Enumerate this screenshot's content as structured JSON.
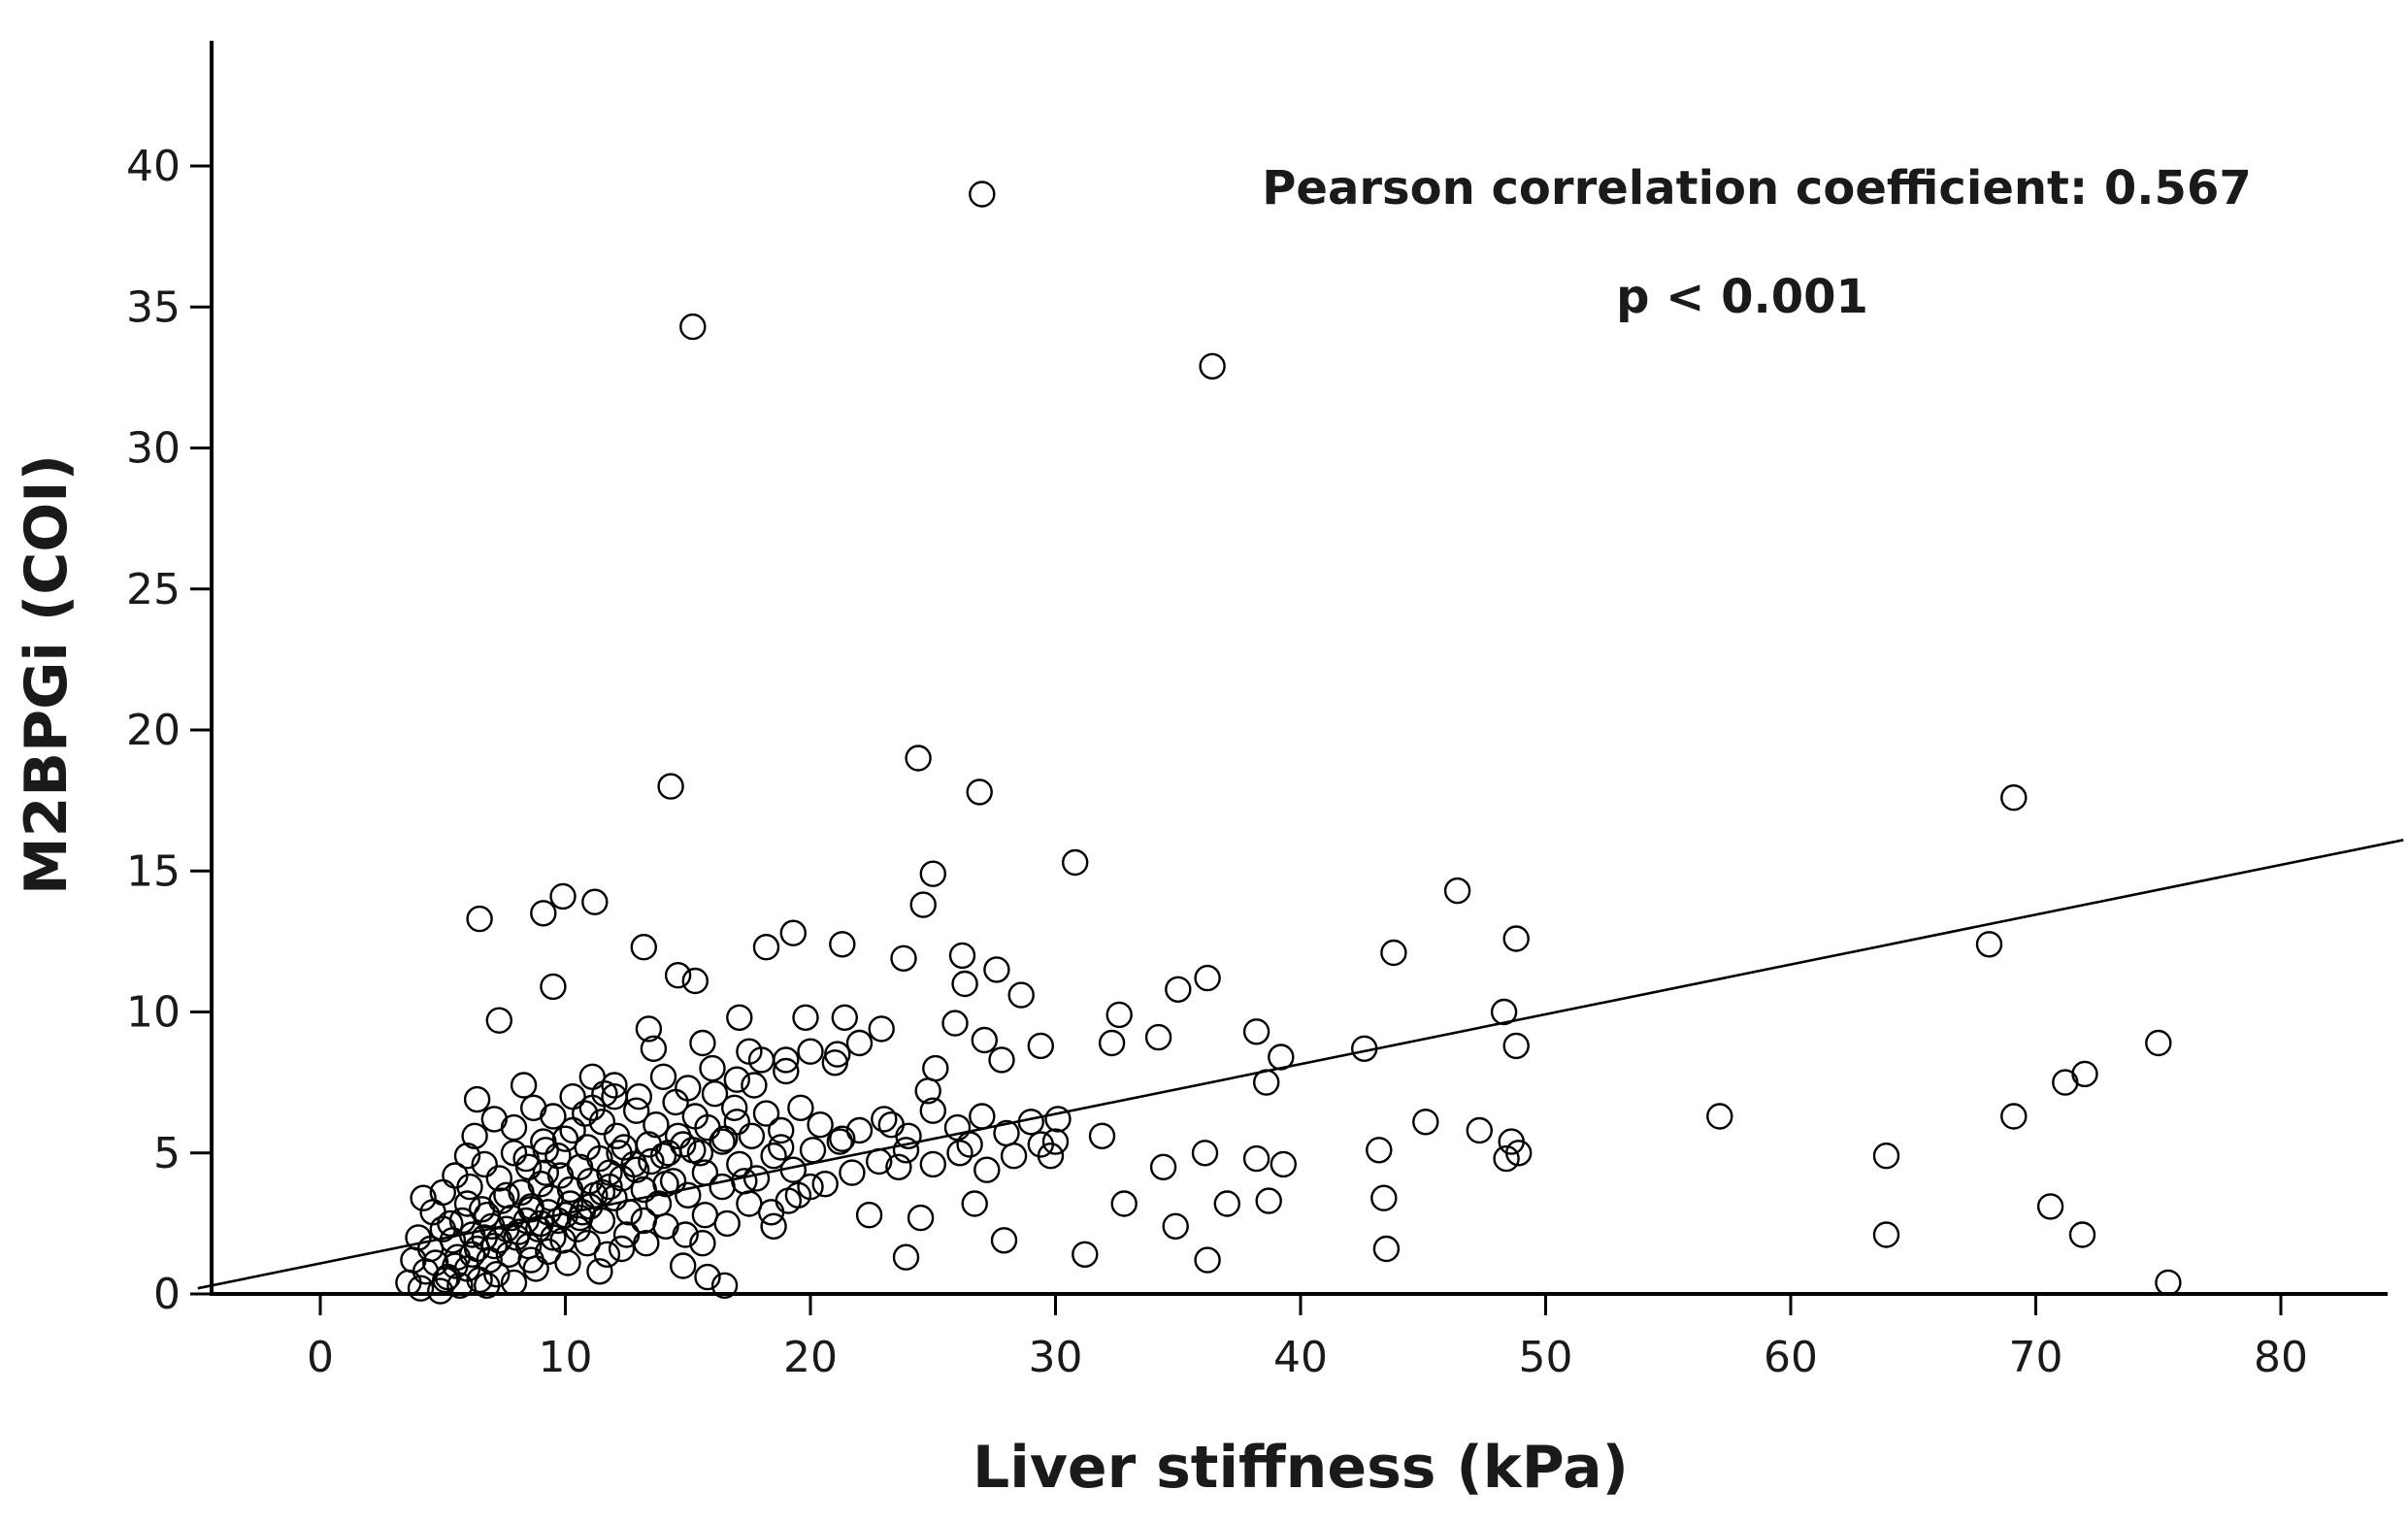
{
  "chart_data": {
    "type": "scatter",
    "title": "",
    "xlabel": "Liver stiffness (kPa)",
    "ylabel": "M2BPGi (COI)",
    "xlim": [
      -5,
      85
    ],
    "ylim": [
      0,
      44
    ],
    "x_ticks": [
      "0",
      "10",
      "20",
      "30",
      "40",
      "50",
      "60",
      "70",
      "80"
    ],
    "x_tick_values": [
      0,
      10,
      20,
      30,
      40,
      50,
      60,
      70,
      80
    ],
    "y_ticks": [
      "0",
      "5",
      "10",
      "15",
      "20",
      "25",
      "30",
      "35",
      "40"
    ],
    "y_tick_values": [
      0,
      5,
      10,
      15,
      20,
      25,
      30,
      35,
      40
    ],
    "annotations": [
      "Pearson correlation coefficient: 0.567",
      "p < 0.001"
    ],
    "fit_line": {
      "x": [
        -5,
        85
      ],
      "y": [
        0.2,
        16.1
      ]
    },
    "marker": "open-circle",
    "points": [
      [
        27.0,
        39.0
      ],
      [
        15.2,
        34.3
      ],
      [
        36.4,
        32.9
      ],
      [
        24.4,
        19.0
      ],
      [
        14.3,
        18.0
      ],
      [
        26.9,
        17.8
      ],
      [
        69.1,
        17.6
      ],
      [
        30.8,
        15.3
      ],
      [
        25.0,
        14.9
      ],
      [
        46.4,
        14.3
      ],
      [
        9.9,
        14.1
      ],
      [
        11.2,
        13.9
      ],
      [
        24.6,
        13.8
      ],
      [
        9.1,
        13.5
      ],
      [
        6.5,
        13.3
      ],
      [
        19.3,
        12.8
      ],
      [
        48.8,
        12.6
      ],
      [
        21.3,
        12.4
      ],
      [
        18.2,
        12.3
      ],
      [
        13.2,
        12.3
      ],
      [
        68.1,
        12.4
      ],
      [
        43.8,
        12.1
      ],
      [
        26.2,
        12.0
      ],
      [
        23.8,
        11.9
      ],
      [
        27.6,
        11.5
      ],
      [
        14.6,
        11.3
      ],
      [
        36.2,
        11.2
      ],
      [
        15.3,
        11.1
      ],
      [
        26.3,
        11.0
      ],
      [
        9.5,
        10.9
      ],
      [
        35.0,
        10.8
      ],
      [
        28.6,
        10.6
      ],
      [
        48.3,
        10.0
      ],
      [
        32.6,
        9.9
      ],
      [
        19.8,
        9.8
      ],
      [
        21.4,
        9.8
      ],
      [
        7.3,
        9.7
      ],
      [
        17.1,
        9.8
      ],
      [
        25.9,
        9.6
      ],
      [
        13.4,
        9.4
      ],
      [
        22.9,
        9.4
      ],
      [
        38.2,
        9.3
      ],
      [
        34.2,
        9.1
      ],
      [
        27.1,
        9.0
      ],
      [
        32.3,
        8.9
      ],
      [
        75.0,
        8.9
      ],
      [
        48.8,
        8.8
      ],
      [
        29.4,
        8.8
      ],
      [
        42.6,
        8.7
      ],
      [
        17.5,
        8.6
      ],
      [
        21.1,
        8.5
      ],
      [
        39.2,
        8.4
      ],
      [
        19.0,
        8.3
      ],
      [
        27.8,
        8.3
      ],
      [
        25.1,
        8.0
      ],
      [
        72.0,
        7.8
      ],
      [
        71.2,
        7.5
      ],
      [
        38.6,
        7.5
      ],
      [
        11.1,
        7.7
      ],
      [
        8.3,
        7.4
      ],
      [
        24.8,
        7.2
      ],
      [
        12.0,
        7.0
      ],
      [
        6.4,
        6.9
      ],
      [
        69.1,
        6.3
      ],
      [
        57.1,
        6.3
      ],
      [
        30.1,
        6.2
      ],
      [
        45.1,
        6.1
      ],
      [
        23.3,
        6.0
      ],
      [
        47.3,
        5.8
      ],
      [
        31.9,
        5.6
      ],
      [
        21.3,
        5.5
      ],
      [
        16.5,
        5.5
      ],
      [
        48.6,
        5.4
      ],
      [
        26.5,
        5.3
      ],
      [
        18.8,
        5.2
      ],
      [
        12.4,
        5.2
      ],
      [
        43.2,
        5.1
      ],
      [
        48.9,
        5.0
      ],
      [
        36.1,
        5.0
      ],
      [
        63.9,
        4.9
      ],
      [
        29.8,
        4.9
      ],
      [
        6.0,
        4.9
      ],
      [
        38.2,
        4.8
      ],
      [
        48.4,
        4.8
      ],
      [
        39.3,
        4.6
      ],
      [
        23.6,
        4.5
      ],
      [
        34.4,
        4.5
      ],
      [
        9.2,
        4.3
      ],
      [
        17.3,
        4.0
      ],
      [
        14.1,
        3.9
      ],
      [
        20.0,
        3.8
      ],
      [
        11.5,
        3.6
      ],
      [
        43.4,
        3.4
      ],
      [
        4.2,
        3.4
      ],
      [
        19.1,
        3.3
      ],
      [
        26.7,
        3.2
      ],
      [
        32.8,
        3.2
      ],
      [
        37.0,
        3.2
      ],
      [
        38.7,
        3.3
      ],
      [
        70.6,
        3.1
      ],
      [
        8.6,
        3.0
      ],
      [
        22.4,
        2.8
      ],
      [
        10.6,
        2.7
      ],
      [
        24.5,
        2.7
      ],
      [
        13.2,
        2.6
      ],
      [
        18.5,
        2.4
      ],
      [
        34.9,
        2.4
      ],
      [
        63.9,
        2.1
      ],
      [
        71.9,
        2.1
      ],
      [
        27.9,
        1.9
      ],
      [
        9.9,
        1.9
      ],
      [
        15.6,
        1.8
      ],
      [
        43.5,
        1.6
      ],
      [
        12.3,
        1.6
      ],
      [
        31.2,
        1.4
      ],
      [
        23.9,
        1.3
      ],
      [
        36.2,
        1.2
      ],
      [
        14.8,
        1.0
      ],
      [
        3.8,
        1.2
      ],
      [
        15.8,
        0.6
      ],
      [
        75.4,
        0.4
      ],
      [
        16.5,
        0.3
      ],
      [
        5.1,
        0.5
      ],
      [
        6.8,
        0.3
      ],
      [
        8.8,
        0.9
      ],
      [
        11.4,
        0.8
      ],
      [
        4.0,
        2.0
      ],
      [
        4.5,
        1.6
      ],
      [
        5.0,
        2.3
      ],
      [
        5.4,
        1.9
      ],
      [
        5.8,
        2.6
      ],
      [
        6.2,
        2.1
      ],
      [
        6.6,
        3.0
      ],
      [
        7.0,
        2.4
      ],
      [
        7.4,
        3.3
      ],
      [
        7.8,
        2.7
      ],
      [
        8.2,
        3.6
      ],
      [
        8.6,
        3.1
      ],
      [
        9.0,
        3.9
      ],
      [
        9.4,
        3.4
      ],
      [
        9.8,
        4.2
      ],
      [
        10.2,
        3.7
      ],
      [
        10.6,
        4.5
      ],
      [
        11.0,
        4.0
      ],
      [
        11.4,
        4.8
      ],
      [
        11.8,
        4.3
      ],
      [
        12.2,
        5.0
      ],
      [
        12.8,
        4.6
      ],
      [
        13.4,
        5.3
      ],
      [
        14.0,
        4.9
      ],
      [
        14.6,
        5.6
      ],
      [
        15.2,
        5.1
      ],
      [
        15.8,
        5.9
      ],
      [
        16.4,
        5.4
      ],
      [
        17.0,
        6.1
      ],
      [
        17.6,
        5.6
      ],
      [
        18.2,
        6.4
      ],
      [
        18.8,
        5.8
      ],
      [
        19.6,
        6.6
      ],
      [
        20.4,
        6.0
      ],
      [
        21.2,
        5.4
      ],
      [
        22.0,
        5.8
      ],
      [
        23.0,
        6.2
      ],
      [
        24.0,
        5.6
      ],
      [
        25.0,
        6.5
      ],
      [
        26.0,
        5.9
      ],
      [
        27.0,
        6.3
      ],
      [
        28.0,
        5.7
      ],
      [
        29.0,
        6.1
      ],
      [
        30.0,
        5.4
      ],
      [
        4.3,
        0.8
      ],
      [
        4.7,
        1.1
      ],
      [
        5.2,
        0.6
      ],
      [
        5.6,
        1.3
      ],
      [
        6.0,
        0.9
      ],
      [
        6.4,
        1.6
      ],
      [
        6.9,
        1.2
      ],
      [
        7.3,
        1.9
      ],
      [
        7.7,
        1.4
      ],
      [
        8.1,
        2.2
      ],
      [
        8.5,
        1.7
      ],
      [
        9.0,
        2.5
      ],
      [
        9.5,
        2.0
      ],
      [
        10.0,
        2.8
      ],
      [
        10.5,
        2.3
      ],
      [
        11.0,
        3.1
      ],
      [
        11.5,
        2.6
      ],
      [
        12.0,
        3.4
      ],
      [
        12.6,
        2.9
      ],
      [
        13.2,
        3.7
      ],
      [
        13.8,
        3.2
      ],
      [
        14.4,
        4.0
      ],
      [
        15.0,
        3.5
      ],
      [
        15.7,
        4.3
      ],
      [
        16.4,
        3.8
      ],
      [
        17.1,
        4.6
      ],
      [
        17.8,
        4.1
      ],
      [
        18.5,
        4.9
      ],
      [
        19.3,
        4.4
      ],
      [
        20.1,
        5.1
      ],
      [
        5.0,
        3.6
      ],
      [
        5.5,
        4.2
      ],
      [
        6.1,
        3.8
      ],
      [
        6.7,
        4.6
      ],
      [
        7.3,
        4.1
      ],
      [
        7.9,
        5.0
      ],
      [
        8.5,
        4.5
      ],
      [
        9.1,
        5.4
      ],
      [
        9.7,
        4.9
      ],
      [
        10.3,
        5.8
      ],
      [
        10.9,
        5.2
      ],
      [
        11.5,
        6.1
      ],
      [
        12.1,
        5.6
      ],
      [
        12.9,
        6.5
      ],
      [
        13.7,
        6.0
      ],
      [
        14.5,
        6.8
      ],
      [
        15.3,
        6.3
      ],
      [
        16.1,
        7.1
      ],
      [
        16.9,
        6.6
      ],
      [
        17.7,
        7.4
      ],
      [
        6.3,
        5.6
      ],
      [
        7.1,
        6.2
      ],
      [
        7.9,
        5.9
      ],
      [
        8.7,
        6.6
      ],
      [
        9.5,
        6.3
      ],
      [
        10.3,
        7.0
      ],
      [
        11.1,
        6.6
      ],
      [
        12.0,
        7.4
      ],
      [
        13.0,
        7.0
      ],
      [
        14.0,
        7.7
      ],
      [
        15.0,
        7.3
      ],
      [
        16.0,
        8.0
      ],
      [
        17.0,
        7.6
      ],
      [
        18.0,
        8.3
      ],
      [
        19.0,
        7.9
      ],
      [
        20.0,
        8.6
      ],
      [
        21.0,
        8.2
      ],
      [
        22.0,
        8.9
      ],
      [
        13.6,
        8.7
      ],
      [
        15.6,
        8.9
      ],
      [
        4.6,
        2.9
      ],
      [
        5.3,
        2.5
      ],
      [
        6.0,
        3.2
      ],
      [
        6.8,
        2.8
      ],
      [
        7.6,
        3.5
      ],
      [
        8.4,
        4.8
      ],
      [
        9.2,
        5.1
      ],
      [
        10.0,
        5.5
      ],
      [
        10.8,
        6.4
      ],
      [
        11.6,
        7.1
      ],
      [
        3.6,
        0.4
      ],
      [
        4.1,
        0.2
      ],
      [
        4.9,
        0.1
      ],
      [
        5.7,
        0.3
      ],
      [
        6.5,
        0.5
      ],
      [
        7.2,
        0.7
      ],
      [
        7.9,
        0.4
      ],
      [
        8.6,
        1.2
      ],
      [
        9.3,
        1.5
      ],
      [
        10.1,
        1.1
      ],
      [
        10.9,
        1.8
      ],
      [
        11.7,
        1.4
      ],
      [
        12.5,
        2.1
      ],
      [
        13.3,
        1.8
      ],
      [
        14.1,
        2.4
      ],
      [
        14.9,
        2.1
      ],
      [
        15.7,
        2.8
      ],
      [
        16.6,
        2.5
      ],
      [
        17.5,
        3.2
      ],
      [
        18.4,
        2.9
      ],
      [
        19.5,
        3.5
      ],
      [
        20.6,
        3.9
      ],
      [
        21.7,
        4.3
      ],
      [
        22.8,
        4.7
      ],
      [
        23.9,
        5.1
      ],
      [
        25.0,
        4.6
      ],
      [
        26.1,
        5.0
      ],
      [
        27.2,
        4.4
      ],
      [
        28.3,
        4.9
      ],
      [
        29.4,
        5.3
      ],
      [
        5.5,
        1.0
      ],
      [
        6.2,
        1.4
      ],
      [
        6.7,
        2.0
      ],
      [
        7.1,
        1.7
      ],
      [
        7.6,
        2.3
      ],
      [
        8.0,
        2.0
      ],
      [
        8.4,
        2.6
      ],
      [
        8.9,
        2.3
      ],
      [
        9.3,
        2.9
      ],
      [
        9.7,
        2.6
      ],
      [
        10.2,
        3.2
      ],
      [
        10.7,
        2.9
      ],
      [
        11.2,
        3.5
      ],
      [
        11.8,
        3.8
      ],
      [
        12.3,
        4.1
      ],
      [
        12.9,
        4.4
      ],
      [
        13.5,
        4.7
      ],
      [
        14.2,
        5.0
      ],
      [
        14.8,
        5.3
      ],
      [
        15.5,
        5.0
      ]
    ]
  }
}
